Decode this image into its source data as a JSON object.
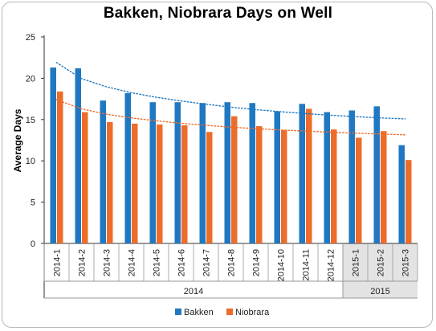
{
  "chart_data": {
    "type": "bar",
    "title": "Bakken, Niobrara Days on Well",
    "xlabel": "",
    "ylabel": "Average Days",
    "ylim": [
      0,
      25
    ],
    "yticks": [
      0,
      5,
      10,
      15,
      20,
      25
    ],
    "grid": false,
    "legend_position": "bottom",
    "categories": [
      "2014-1",
      "2014-2",
      "2014-3",
      "2014-4",
      "2014-5",
      "2014-6",
      "2014-7",
      "2014-8",
      "2014-9",
      "2014-10",
      "2014-11",
      "2014-12",
      "2015-1",
      "2015-2",
      "2015-3"
    ],
    "category_groups": [
      {
        "label": "2014",
        "count": 12
      },
      {
        "label": "2015",
        "count": 3
      }
    ],
    "series": [
      {
        "name": "Bakken",
        "color": "#1f78c1",
        "values": [
          21.3,
          21.2,
          17.3,
          18.2,
          17.1,
          17.1,
          17.0,
          17.1,
          17.0,
          16.0,
          16.9,
          15.9,
          16.1,
          16.6,
          11.9
        ]
      },
      {
        "name": "Niobrara",
        "color": "#ee6c2a",
        "values": [
          18.4,
          15.9,
          14.7,
          14.5,
          14.4,
          14.3,
          13.5,
          15.4,
          14.2,
          13.7,
          16.3,
          13.8,
          12.8,
          13.6,
          10.1
        ]
      }
    ],
    "trendlines": [
      {
        "series": "Bakken",
        "style": "dotted",
        "color": "#1f78c1",
        "values": [
          21.9,
          19.95,
          18.97,
          18.25,
          17.7,
          17.25,
          16.86,
          16.5,
          16.2,
          15.95,
          15.72,
          15.52,
          15.35,
          15.2,
          15.08
        ]
      },
      {
        "series": "Niobrara",
        "style": "dotted",
        "color": "#ee6c2a",
        "values": [
          17.4,
          16.3,
          15.65,
          15.2,
          14.85,
          14.55,
          14.3,
          14.08,
          13.9,
          13.74,
          13.6,
          13.47,
          13.35,
          13.25,
          13.15
        ]
      }
    ]
  }
}
